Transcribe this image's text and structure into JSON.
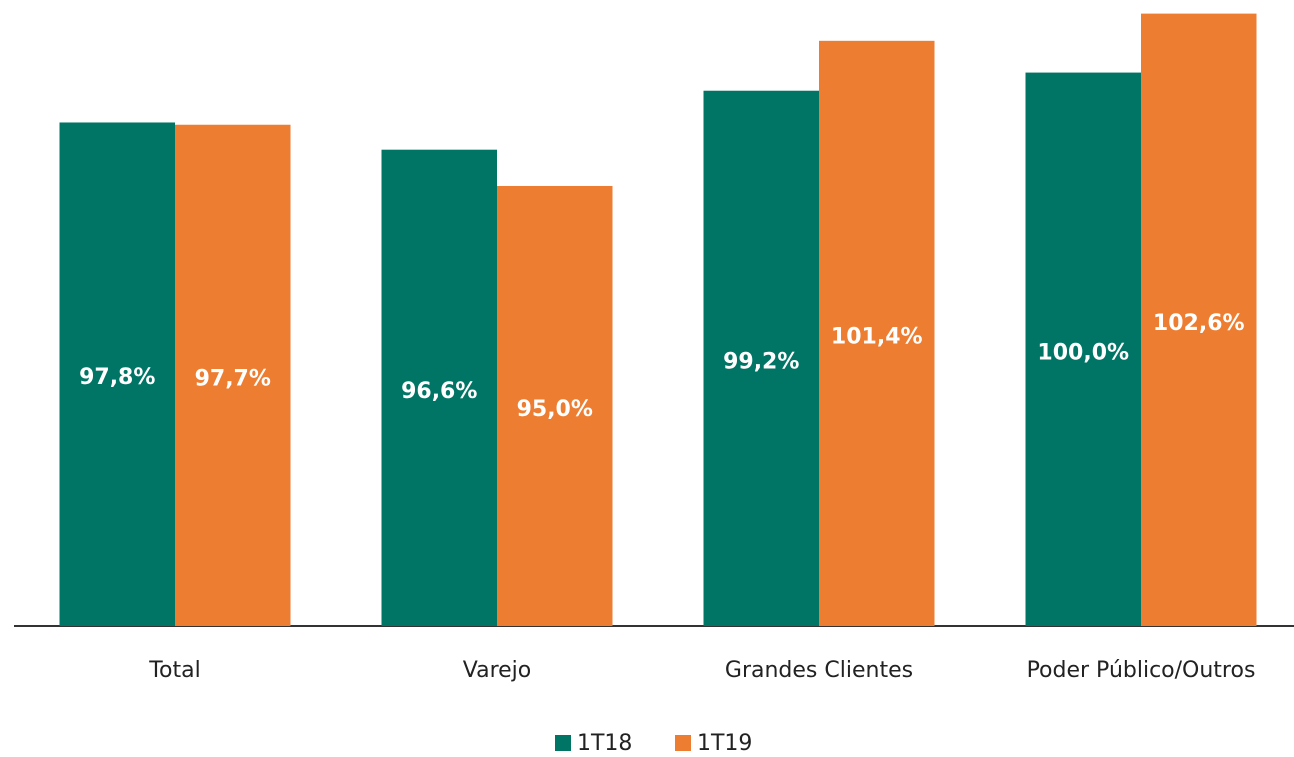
{
  "chart_data": {
    "type": "bar",
    "categories": [
      "Total",
      "Varejo",
      "Grandes Clientes",
      "Poder Público/Outros"
    ],
    "series": [
      {
        "name": "1T18",
        "color": "#007566",
        "values": [
          97.8,
          96.6,
          99.2,
          100.0
        ],
        "value_labels": [
          "97,8%",
          "96,6%",
          "99,2%",
          "100,0%"
        ]
      },
      {
        "name": "1T19",
        "color": "#ed7d31",
        "values": [
          97.7,
          95.0,
          101.4,
          102.6
        ],
        "value_labels": [
          "97,7%",
          "95,0%",
          "101,4%",
          "102,6%"
        ]
      }
    ],
    "ylim": [
      75.6,
      103.2
    ],
    "legend": "bottom"
  }
}
